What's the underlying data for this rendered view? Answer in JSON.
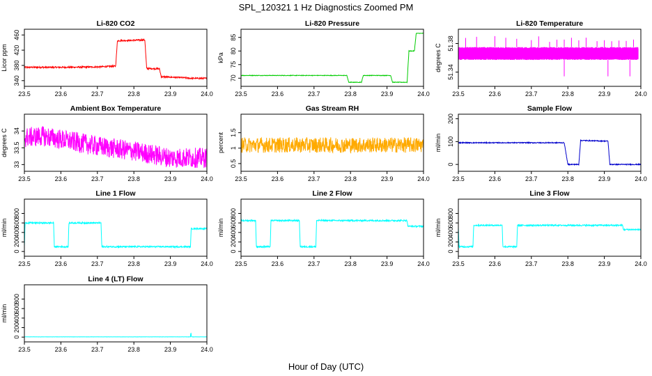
{
  "figure": {
    "title": "SPL_120321  1 Hz Diagnostics Zoomed PM",
    "xlabel": "Hour of Day (UTC)"
  },
  "chart_data": [
    {
      "type": "line",
      "id": "co2",
      "title": "Li-820 CO2",
      "ylabel": "Licor ppm",
      "color": "#ff0000",
      "xlim": [
        23.5,
        24.0
      ],
      "ylim": [
        325,
        475
      ],
      "xticks": [
        23.5,
        23.6,
        23.7,
        23.8,
        23.9,
        24.0
      ],
      "yticks": [
        340,
        380,
        420,
        460
      ],
      "noise": 2,
      "x": [
        23.5,
        23.6,
        23.7,
        23.75,
        23.755,
        23.8,
        23.83,
        23.835,
        23.87,
        23.875,
        23.93,
        23.96,
        24.0
      ],
      "y": [
        375,
        375,
        376,
        378,
        445,
        446,
        447,
        372,
        371,
        350,
        348,
        346,
        346
      ]
    },
    {
      "type": "line",
      "id": "pressure",
      "title": "Li-820 Pressure",
      "ylabel": "kPa",
      "color": "#00cc00",
      "xlim": [
        23.5,
        24.0
      ],
      "ylim": [
        67,
        88
      ],
      "xticks": [
        23.5,
        23.6,
        23.7,
        23.8,
        23.9,
        24.0
      ],
      "yticks": [
        70,
        75,
        80,
        85
      ],
      "noise": 0.1,
      "x": [
        23.5,
        23.79,
        23.795,
        23.83,
        23.835,
        23.91,
        23.915,
        23.955,
        23.96,
        23.975,
        23.98,
        24.0
      ],
      "y": [
        71,
        71,
        68.5,
        68.5,
        71,
        71,
        68.5,
        68.5,
        80,
        80,
        86.5,
        86.5
      ]
    },
    {
      "type": "line",
      "id": "licor-temp",
      "title": "Li-820 Temperature",
      "ylabel": "degrees C",
      "color": "#ff00ff",
      "xlim": [
        23.5,
        24.0
      ],
      "ylim": [
        51.32,
        51.4
      ],
      "xticks": [
        23.5,
        23.6,
        23.7,
        23.8,
        23.9,
        24.0
      ],
      "yticks": [
        51.34,
        51.38
      ],
      "band": [
        51.357,
        51.375
      ],
      "spikes_up": [
        23.52,
        23.55,
        23.6,
        23.63,
        23.66,
        23.7,
        23.72,
        23.75,
        23.77,
        23.79,
        23.81,
        23.83,
        23.85,
        23.88,
        23.9,
        23.92,
        23.94,
        23.96,
        23.98
      ],
      "spikes_down": [
        23.79,
        23.91,
        23.97
      ],
      "spike_high": 51.392,
      "spike_low": 51.334
    },
    {
      "type": "line",
      "id": "ambient-temp",
      "title": "Ambient Box Temperature",
      "ylabel": "degrees C",
      "color": "#ff00ff",
      "xlim": [
        23.5,
        24.0
      ],
      "ylim": [
        32.8,
        34.5
      ],
      "xticks": [
        23.5,
        23.6,
        23.7,
        23.8,
        23.9,
        24.0
      ],
      "yticks": [
        33.0,
        33.5,
        34.0
      ],
      "noise": 0.3,
      "x": [
        23.5,
        23.55,
        23.6,
        23.7,
        23.8,
        23.9,
        24.0
      ],
      "y": [
        33.8,
        33.85,
        33.75,
        33.55,
        33.4,
        33.2,
        33.2
      ]
    },
    {
      "type": "line",
      "id": "rh",
      "title": "Gas Stream RH",
      "ylabel": "percent",
      "color": "#ffaa00",
      "xlim": [
        23.5,
        24.0
      ],
      "ylim": [
        0.25,
        2.1
      ],
      "xticks": [
        23.5,
        23.6,
        23.7,
        23.8,
        23.9,
        24.0
      ],
      "yticks": [
        0.5,
        1.0,
        1.5
      ],
      "noise": 0.25,
      "x": [
        23.5,
        24.0
      ],
      "y": [
        1.1,
        1.1
      ]
    },
    {
      "type": "line",
      "id": "sample-flow",
      "title": "Sample Flow",
      "ylabel": "ml/min",
      "color": "#0000cc",
      "xlim": [
        23.5,
        24.0
      ],
      "ylim": [
        -30,
        220
      ],
      "xticks": [
        23.5,
        23.6,
        23.7,
        23.8,
        23.9,
        24.0
      ],
      "yticks": [
        0,
        100,
        200
      ],
      "noise": 2,
      "x": [
        23.5,
        23.79,
        23.8,
        23.83,
        23.835,
        23.91,
        23.915,
        24.0
      ],
      "y": [
        95,
        95,
        0,
        0,
        105,
        102,
        0,
        0
      ]
    },
    {
      "type": "line",
      "id": "line1-flow",
      "title": "Line 1 Flow",
      "ylabel": "ml/min",
      "color": "#00ffff",
      "xlim": [
        23.5,
        24.0
      ],
      "ylim": [
        -100,
        1100
      ],
      "xticks": [
        23.5,
        23.6,
        23.7,
        23.8,
        23.9,
        24.0
      ],
      "yticks": [
        0,
        200,
        400,
        600,
        800
      ],
      "noise": 15,
      "x": [
        23.5,
        23.502,
        23.58,
        23.582,
        23.62,
        23.622,
        23.71,
        23.712,
        23.955,
        23.957,
        24.0
      ],
      "y": [
        100,
        600,
        600,
        100,
        100,
        600,
        600,
        100,
        100,
        480,
        480
      ]
    },
    {
      "type": "line",
      "id": "line2-flow",
      "title": "Line 2 Flow",
      "ylabel": "ml/min",
      "color": "#00ffff",
      "xlim": [
        23.5,
        24.0
      ],
      "ylim": [
        -100,
        1100
      ],
      "xticks": [
        23.5,
        23.6,
        23.7,
        23.8,
        23.9,
        24.0
      ],
      "yticks": [
        0,
        200,
        400,
        600,
        800
      ],
      "noise": 15,
      "x": [
        23.5,
        23.54,
        23.542,
        23.58,
        23.582,
        23.66,
        23.662,
        23.705,
        23.707,
        23.955,
        23.957,
        24.0
      ],
      "y": [
        650,
        650,
        100,
        100,
        650,
        650,
        100,
        100,
        650,
        650,
        530,
        530
      ]
    },
    {
      "type": "line",
      "id": "line3-flow",
      "title": "Line 3 Flow",
      "ylabel": "ml/min",
      "color": "#00ffff",
      "xlim": [
        23.5,
        24.0
      ],
      "ylim": [
        -100,
        1100
      ],
      "xticks": [
        23.5,
        23.6,
        23.7,
        23.8,
        23.9,
        24.0
      ],
      "yticks": [
        0,
        200,
        400,
        600,
        800
      ],
      "noise": 15,
      "x": [
        23.5,
        23.502,
        23.54,
        23.542,
        23.62,
        23.622,
        23.66,
        23.662,
        23.95,
        23.952,
        24.0
      ],
      "y": [
        500,
        100,
        100,
        550,
        550,
        100,
        100,
        550,
        550,
        460,
        460
      ]
    },
    {
      "type": "line",
      "id": "line4-flow",
      "title": "Line 4 (LT) Flow",
      "ylabel": "ml/min",
      "color": "#00ffff",
      "xlim": [
        23.5,
        24.0
      ],
      "ylim": [
        -100,
        1100
      ],
      "xticks": [
        23.5,
        23.6,
        23.7,
        23.8,
        23.9,
        24.0
      ],
      "yticks": [
        0,
        200,
        400,
        600,
        800
      ],
      "noise": 2,
      "x": [
        23.5,
        23.955,
        23.956,
        23.958,
        23.96,
        24.0
      ],
      "y": [
        5,
        5,
        100,
        5,
        5,
        5
      ]
    }
  ]
}
